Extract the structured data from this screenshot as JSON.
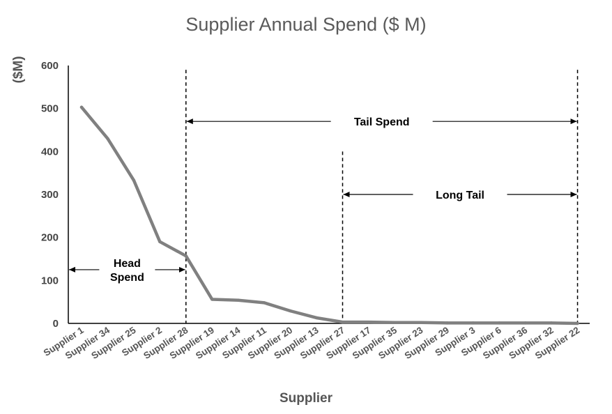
{
  "chart_data": {
    "type": "line",
    "title": "Supplier Annual Spend ($ M)",
    "xlabel": "Supplier",
    "ylabel": "($M)",
    "ylim": [
      0,
      600
    ],
    "yticks": [
      0,
      100,
      200,
      300,
      400,
      500,
      600
    ],
    "grid": false,
    "categories": [
      "Supplier 1",
      "Supplier 34",
      "Supplier 25",
      "Supplier 2",
      "Supplier 28",
      "Supplier 19",
      "Supplier 14",
      "Supplier 11",
      "Supplier 20",
      "Supplier 13",
      "Supplier 27",
      "Supplier 17",
      "Supplier 35",
      "Supplier 23",
      "Supplier 29",
      "Supplier 3",
      "Supplier 6",
      "Supplier 36",
      "Supplier 32",
      "Supplier 22"
    ],
    "series": [
      {
        "color": "#808080",
        "values": [
          503,
          430,
          333,
          190,
          157,
          56,
          54,
          48,
          29,
          13,
          3,
          3,
          2,
          2,
          1,
          1,
          1,
          1,
          1,
          0
        ]
      }
    ],
    "annotations": [
      {
        "text": [
          "Head",
          "Spend"
        ],
        "from_index": 0,
        "to_index": 4,
        "y": 125
      },
      {
        "text": [
          "Tail Spend"
        ],
        "from_index": 4,
        "to_index": 19,
        "y": 470
      },
      {
        "text": [
          "Long Tail"
        ],
        "from_index": 10,
        "to_index": 19,
        "y": 300
      }
    ],
    "dividers": [
      {
        "index": 4,
        "from": 0,
        "to": 590
      },
      {
        "index": 10,
        "from": 0,
        "to": 400
      },
      {
        "index": 19,
        "from": 0,
        "to": 590
      }
    ]
  }
}
